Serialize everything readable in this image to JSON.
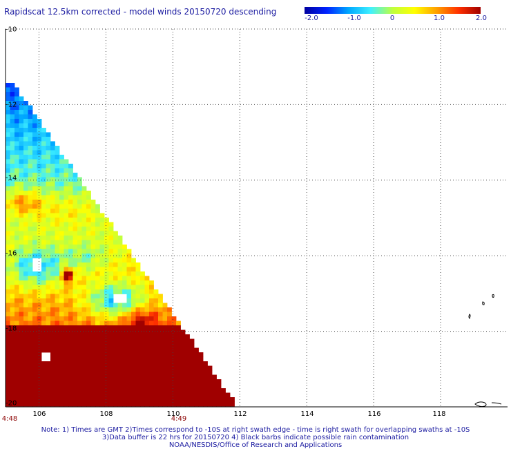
{
  "header": {
    "title": "Rapidscat 12.5km corrected - model winds 20150720 descending"
  },
  "colorbar": {
    "labels": [
      "-2.0",
      "-1.0",
      "0",
      "1.0",
      "2.0"
    ],
    "colors": [
      "#0000a0",
      "#0022ff",
      "#00a8ff",
      "#3ff0ff",
      "#bfff3f",
      "#ffff00",
      "#ffa000",
      "#ff3000",
      "#a00000"
    ]
  },
  "axes": {
    "x_ticks": [
      "106",
      "108",
      "110",
      "112",
      "114",
      "116",
      "118"
    ],
    "y_ticks": [
      "-10",
      "-12",
      "-14",
      "-16",
      "-18",
      "-20"
    ]
  },
  "swath_times": [
    "4:48",
    "4:49"
  ],
  "notes": {
    "line1": "Note: 1) Times are GMT 2)Times correspond to -10S at right swath edge - time is right swath for overlapping swaths at -10S",
    "line2": "3)Data buffer is 22 hrs for 20150720 4) Black barbs indicate possible rain contamination",
    "line3": "NOAA/NESDIS/Office of Research and Applications"
  },
  "map_data": {
    "lon_range": [
      105,
      120
    ],
    "lat_range": [
      -20,
      -10
    ],
    "value_range": [
      -2.0,
      2.0
    ]
  }
}
